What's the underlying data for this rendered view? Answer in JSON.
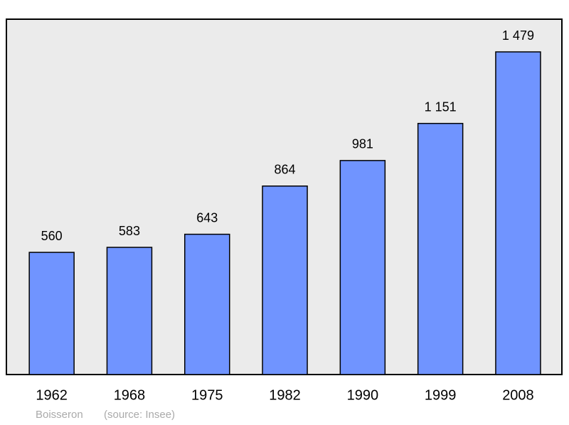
{
  "chart_data": {
    "type": "bar",
    "categories": [
      "1962",
      "1968",
      "1975",
      "1982",
      "1990",
      "1999",
      "2008"
    ],
    "values": [
      560,
      583,
      643,
      864,
      981,
      1151,
      1479
    ],
    "value_labels": [
      "560",
      "583",
      "643",
      "864",
      "981",
      "1 151",
      "1 479"
    ],
    "color": "#7094ff",
    "caption": "Boisseron",
    "source": "(source: Insee)"
  }
}
